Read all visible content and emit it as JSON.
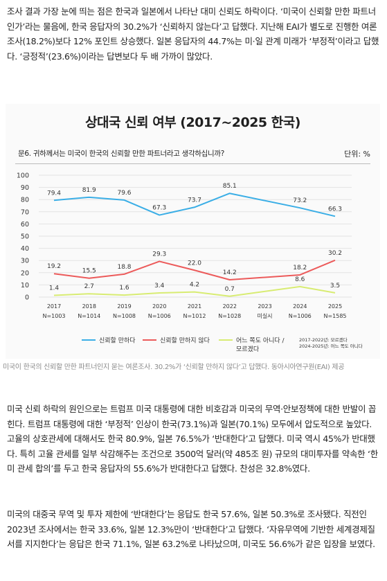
{
  "paragraph_1": "조사 결과 가장 눈에 띄는 점은 한국과 일본에서 나타난 대미 신뢰도 하락이다. ‘미국이 신뢰할 만한 파트너인가’라는 물음에, 한국 응답자의 30.2%가 ‘신뢰하지 않는다’고 답했다. 지난해 EAI가 별도로 진행한 여론조사(18.2%)보다 12% 포인트 상승했다. 일본 응답자의 44.7%는 미·일 관계 미래가 ‘부정적’이라고 답했다. ‘긍정적’(23.6%)이라는 답변보다 두 배 가까이 많았다.",
  "figure": {
    "title": "상대국 신뢰 여부 (2017~2025 한국)",
    "question": "문6. 귀하께서는 미국이 한국의 신뢰할 만한 파트너라고 생각하십니까?",
    "unit": "단위: %"
  },
  "chart_data": {
    "type": "line",
    "title": "상대국 신뢰 여부 (2017~2025 한국)",
    "ylim": [
      0,
      100
    ],
    "yticks": [
      "0",
      "10",
      "20",
      "30",
      "40",
      "50",
      "60",
      "70",
      "80",
      "90",
      "100"
    ],
    "grid": true,
    "legend_position": "bottom",
    "categories": [
      "2017",
      "2018",
      "2019",
      "2020",
      "2021",
      "2022",
      "2023",
      "2024",
      "2025"
    ],
    "category_sublabels": [
      "N=1003",
      "N=1014",
      "N=1008",
      "N=1006",
      "N=1012",
      "N=1028",
      "미실시",
      "N=1006",
      "N=1585"
    ],
    "series": [
      {
        "name": "신뢰할 만하다",
        "color": "#3aaee6",
        "values": [
          79.4,
          81.9,
          79.6,
          67.3,
          73.7,
          85.1,
          null,
          73.2,
          66.3
        ],
        "labels": [
          "79.4",
          "81.9",
          "79.6",
          "67.3",
          "73.7",
          "85.1",
          "",
          "73.2",
          "66.3"
        ]
      },
      {
        "name": "신뢰할 만하지 않다",
        "color": "#ec5a5a",
        "values": [
          19.2,
          15.5,
          18.8,
          29.3,
          22.0,
          14.2,
          null,
          18.2,
          30.2
        ],
        "labels": [
          "19.2",
          "15.5",
          "18.8",
          "29.3",
          "22.0",
          "14.2",
          "",
          "18.2",
          "30.2"
        ]
      },
      {
        "name": "어느 쪽도 아니다 / 모르겠다",
        "color": "#d8ec72",
        "values": [
          1.4,
          2.7,
          1.6,
          3.4,
          4.2,
          0.7,
          null,
          8.6,
          3.5
        ],
        "labels": [
          "1.4",
          "2.7",
          "1.6",
          "3.4",
          "4.2",
          "0.7",
          "",
          "8.6",
          "3.5"
        ]
      }
    ],
    "legend_labels": [
      "신뢰할 만하다",
      "신뢰할 만하지 않다",
      "어느 쪽도 아니다 /",
      "모르겠다"
    ],
    "notes": [
      "2017-2022년: 모르겠다",
      "2024-2025년: 어느 쪽도 아니다"
    ]
  },
  "caption": "미국이 한국의 신뢰할 만한 파트너인지 묻는 여론조사. 30.2%가 ‘신뢰할 만하지 않다’고 답했다. 동아시아연구원(EAI) 제공",
  "paragraph_2": "미국 신뢰 하락의 원인으로는 트럼프 미국 대통령에 대한 비호감과 미국의 무역·안보정책에 대한 반발이 꼽힌다. 트럼프 대통령에 대한 ‘부정적’ 인상이 한국(73.1%)과 일본(70.1%) 모두에서 압도적으로 높았다. 고율의 상호관세에 대해서도 한국 80.9%, 일본 76.5%가 ‘반대한다’고 답했다. 미국 역시 45%가 반대했다. 특히 고율 관세를 일부 삭감해주는 조건으로 3500억 달러(약 485조 원) 규모의 대미투자를 약속한 ‘한미 관세 합의’를 두고 한국 응답자의 55.6%가 반대한다고 답했다. 찬성은 32.8%였다.",
  "paragraph_3": "미국의 대중국 무역 및 투자 제한에 ‘반대한다’는 응답도 한국 57.6%, 일본 50.3%로 조사됐다. 직전인 2023년 조사에서는 한국 33.6%, 일본 12.3%만이 ‘반대한다’고 답했다. ‘자유무역에 기반한 세계경제질서를 지지한다’는 응답은 한국 71.1%, 일본 63.2%로 나타났으며, 미국도 56.6%가 같은 입장을 보였다."
}
